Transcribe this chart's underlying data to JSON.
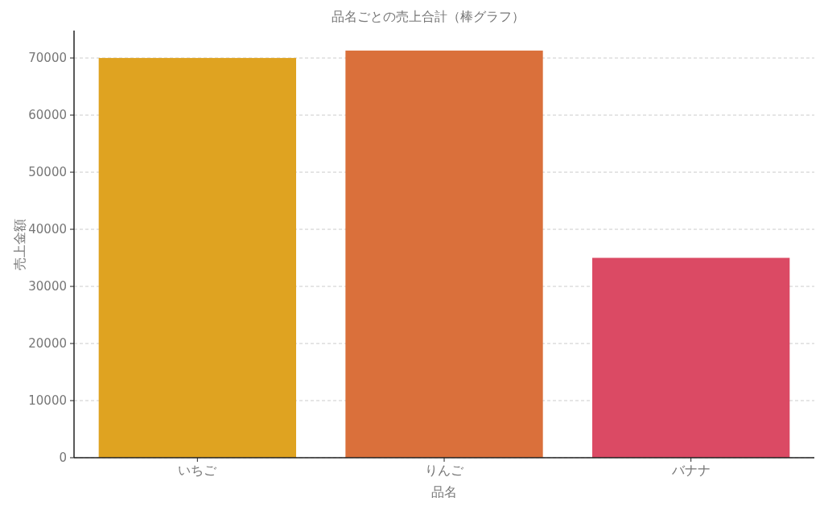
{
  "chart_data": {
    "type": "bar",
    "title": "品名ごとの売上合計（棒グラフ）",
    "xlabel": "品名",
    "ylabel": "売上金額",
    "categories": [
      "いちご",
      "りんご",
      "バナナ"
    ],
    "values": [
      70000,
      71300,
      35000
    ],
    "colors": [
      "#dfa321",
      "#da703b",
      "#db4a64"
    ],
    "ylim": [
      0,
      74800
    ],
    "yticks": [
      0,
      10000,
      20000,
      30000,
      40000,
      50000,
      60000,
      70000
    ],
    "grid": "y"
  }
}
